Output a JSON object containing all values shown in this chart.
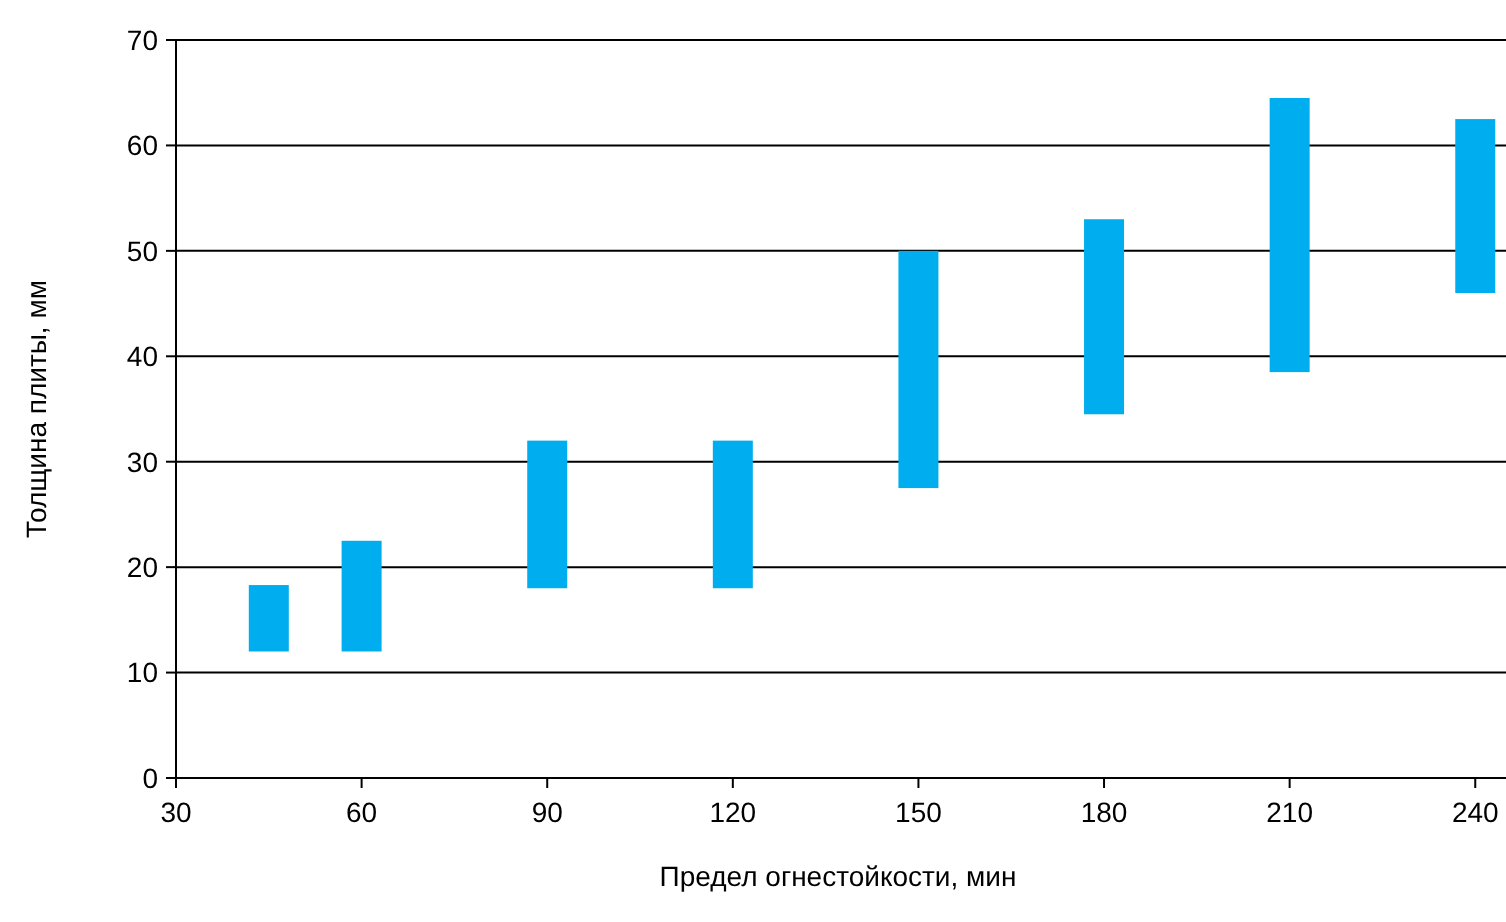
{
  "chart_data": {
    "type": "bar",
    "xlabel": "Предел огнестойкости, мин",
    "ylabel": "Толщина плиты, мм",
    "x": [
      45,
      60,
      90,
      120,
      150,
      180,
      210,
      240
    ],
    "base": [
      12,
      12,
      18,
      18,
      27.5,
      34.5,
      38.5,
      46
    ],
    "values": [
      6.3,
      10.5,
      14,
      14,
      22.5,
      18.5,
      26,
      16.5
    ],
    "color": "#00aeef",
    "xlim": [
      30,
      244
    ],
    "xticks": [
      30,
      60,
      90,
      120,
      150,
      180,
      210,
      240
    ],
    "ylim": [
      0,
      70
    ],
    "yticks": [
      0,
      10,
      20,
      30,
      40,
      50,
      60,
      70
    ],
    "grid": "y"
  }
}
